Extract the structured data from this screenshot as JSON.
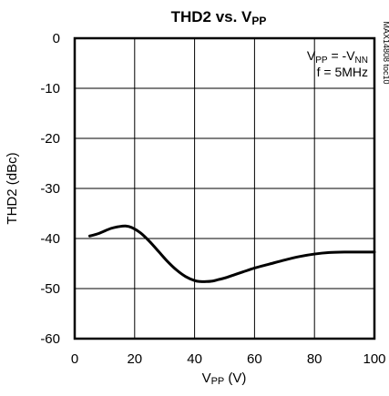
{
  "chart_data": {
    "type": "line",
    "title": {
      "main": "THD2 vs. V",
      "sub": "PP"
    },
    "xlabel": {
      "main": "V",
      "sub": "PP",
      "rest": " (V)"
    },
    "ylabel": "THD2 (dBc)",
    "xlim": [
      0,
      100
    ],
    "ylim": [
      -60,
      0
    ],
    "xticks": [
      "0",
      "20",
      "40",
      "60",
      "80",
      "100"
    ],
    "yticks": [
      "0",
      "-10",
      "-20",
      "-30",
      "-40",
      "-50",
      "-60"
    ],
    "grid": true,
    "annotations": {
      "line1": {
        "a": "V",
        "a_sub": "PP",
        "b": " = -V",
        "b_sub": "NN"
      },
      "line2": "f = 5MHz"
    },
    "watermark": "MAX14808 toc10",
    "series": [
      {
        "x": [
          5,
          8,
          12,
          15,
          17,
          19,
          22,
          25,
          28,
          31,
          34,
          37,
          40,
          42,
          44,
          46,
          48,
          50,
          53,
          56,
          60,
          65,
          70,
          75,
          80,
          85,
          90,
          95,
          100
        ],
        "y": [
          -39.5,
          -39.0,
          -38.0,
          -37.6,
          -37.5,
          -37.8,
          -38.9,
          -40.6,
          -42.6,
          -44.6,
          -46.3,
          -47.6,
          -48.4,
          -48.6,
          -48.6,
          -48.5,
          -48.2,
          -47.9,
          -47.3,
          -46.7,
          -45.9,
          -45.1,
          -44.3,
          -43.6,
          -43.1,
          -42.8,
          -42.7,
          -42.7,
          -42.7
        ]
      }
    ]
  }
}
